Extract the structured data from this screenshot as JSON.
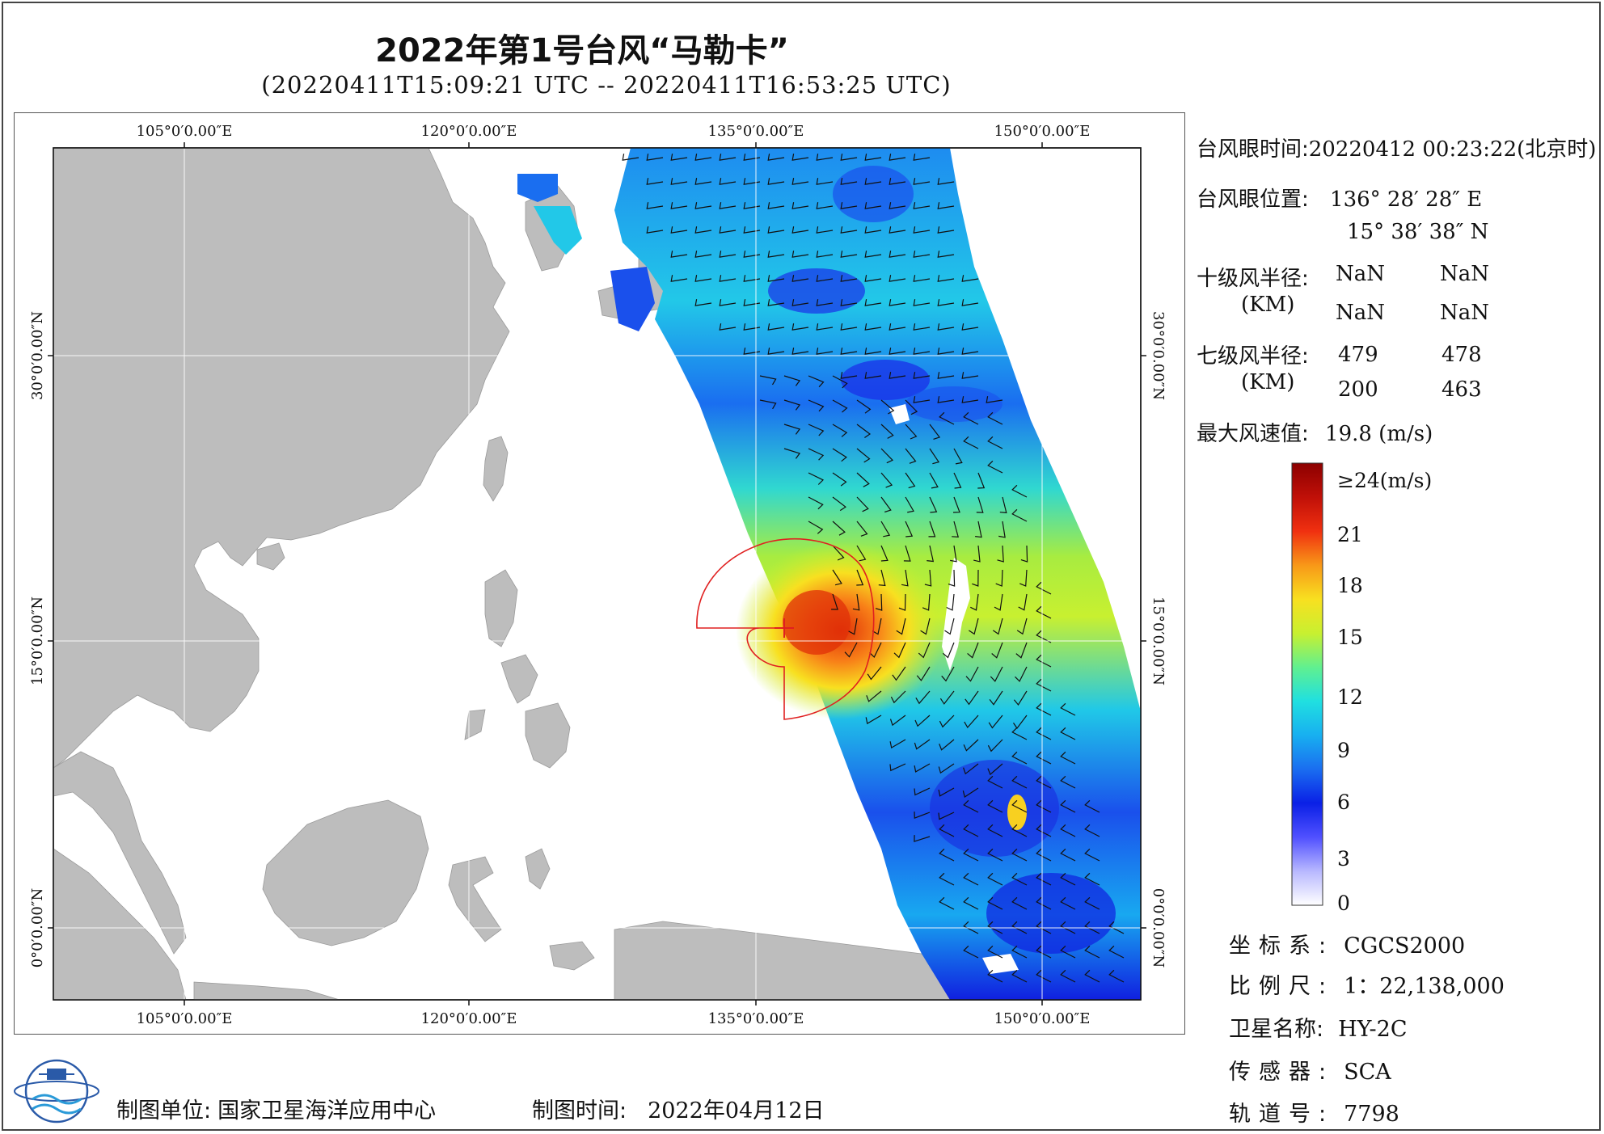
{
  "title": "2022年第1号台风“马勒卡”",
  "subtitle": "(20220411T15:09:21 UTC -- 20220411T16:53:25 UTC)",
  "map": {
    "lon_ticks": [
      "105°0′0.00″E",
      "120°0′0.00″E",
      "135°0′0.00″E",
      "150°0′0.00″E"
    ],
    "lat_ticks": [
      "30°0′0.00″N",
      "15°0′0.00″N",
      "0°0′0.00″N"
    ],
    "typhoon_center": {
      "lon": 136.47,
      "lat": 15.64
    }
  },
  "info": {
    "eye_time_label": "台风眼时间:",
    "eye_time_value": "20220412 00:23:22(北京时)",
    "eye_pos_label": "台风眼位置:",
    "eye_lon": "136° 28′ 28″ E",
    "eye_lat": "15° 38′ 38″ N",
    "r10_label": "十级风半径:",
    "r10_unit": "(KM)",
    "r10_values": [
      "NaN",
      "NaN",
      "NaN",
      "NaN"
    ],
    "r7_label": "七级风半径:",
    "r7_unit": "(KM)",
    "r7_values": [
      "479",
      "478",
      "200",
      "463"
    ],
    "max_wind_label": "最大风速值:",
    "max_wind_value": "19.8  (m/s)"
  },
  "colorbar": {
    "ticks": [
      "≥24(m/s)",
      "21",
      "18",
      "15",
      "12",
      "9",
      "6",
      "3",
      "0"
    ],
    "colors": [
      "#ffffff",
      "#b8b8ff",
      "#5050ff",
      "#0a20e6",
      "#1a6ef0",
      "#18b0f0",
      "#20e0e0",
      "#60f090",
      "#c8f030",
      "#f8e020",
      "#f89818",
      "#f03010",
      "#c01008",
      "#8c0000"
    ]
  },
  "meta": {
    "crs_label": "坐标系:",
    "crs_value": "CGCS2000",
    "scale_label": "比例尺:",
    "scale_value": "1：22,138,000",
    "sat_label": "卫星名称:",
    "sat_value": "HY-2C",
    "sensor_label": "传感器:",
    "sensor_value": "SCA",
    "orbit_label": "轨道号:",
    "orbit_value": "7798"
  },
  "footer": {
    "unit_label": "制图单位:",
    "unit_value": "国家卫星海洋应用中心",
    "time_label": "制图时间:",
    "time_value": "2022年04月12日"
  }
}
